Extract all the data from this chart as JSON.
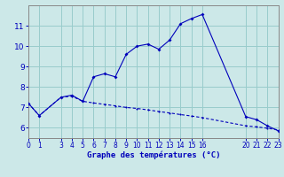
{
  "title": "Graphe des températures (°C)",
  "bg_color": "#cce8e8",
  "line_color": "#0000bb",
  "grid_color": "#99cccc",
  "temp_x": [
    0,
    1,
    3,
    4,
    5,
    6,
    7,
    8,
    9,
    10,
    11,
    12,
    13,
    14,
    15,
    16,
    20,
    21,
    22,
    23
  ],
  "temp_y": [
    7.2,
    6.6,
    7.5,
    7.6,
    7.3,
    8.5,
    8.65,
    8.5,
    9.6,
    10.0,
    10.1,
    9.85,
    10.3,
    11.1,
    11.35,
    11.55,
    6.55,
    6.4,
    6.1,
    5.85
  ],
  "dew_x": [
    0,
    1,
    3,
    4,
    5,
    6,
    7,
    8,
    9,
    10,
    11,
    12,
    13,
    14,
    15,
    16,
    20,
    21,
    22,
    23
  ],
  "dew_y": [
    7.2,
    6.6,
    7.5,
    7.55,
    7.3,
    7.22,
    7.15,
    7.08,
    7.0,
    6.95,
    6.88,
    6.8,
    6.73,
    6.65,
    6.58,
    6.5,
    6.1,
    6.05,
    5.98,
    5.9
  ],
  "xlim": [
    0,
    23
  ],
  "ylim": [
    5.5,
    12.0
  ],
  "yticks": [
    6,
    7,
    8,
    9,
    10,
    11
  ],
  "xtick_pos": [
    0,
    1,
    3,
    4,
    5,
    6,
    7,
    8,
    9,
    10,
    11,
    12,
    13,
    14,
    15,
    16,
    20,
    21,
    22,
    23
  ],
  "xtick_labels": [
    "0",
    "1",
    "3",
    "4",
    "5",
    "6",
    "7",
    "8",
    "9",
    "10",
    "11",
    "12",
    "13",
    "14",
    "15",
    "16",
    "20",
    "21",
    "22",
    "23"
  ],
  "ylabel_fontsize": 6.5,
  "xlabel_fontsize": 6.5,
  "tick_fontsize": 5.5
}
